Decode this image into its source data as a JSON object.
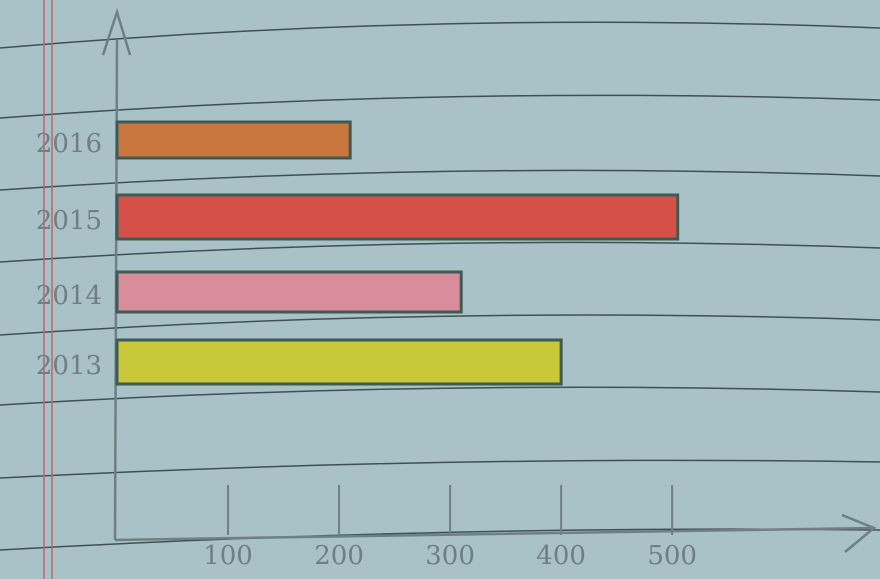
{
  "chart_data": {
    "type": "bar",
    "orientation": "horizontal",
    "categories": [
      "2013",
      "2014",
      "2015",
      "2016"
    ],
    "values": [
      400,
      310,
      505,
      210
    ],
    "colors": [
      "#c9c838",
      "#d98c9c",
      "#d6504a",
      "#c9773e"
    ],
    "xlim": [
      0,
      680
    ],
    "xticks": [
      100,
      200,
      300,
      400,
      500
    ]
  }
}
